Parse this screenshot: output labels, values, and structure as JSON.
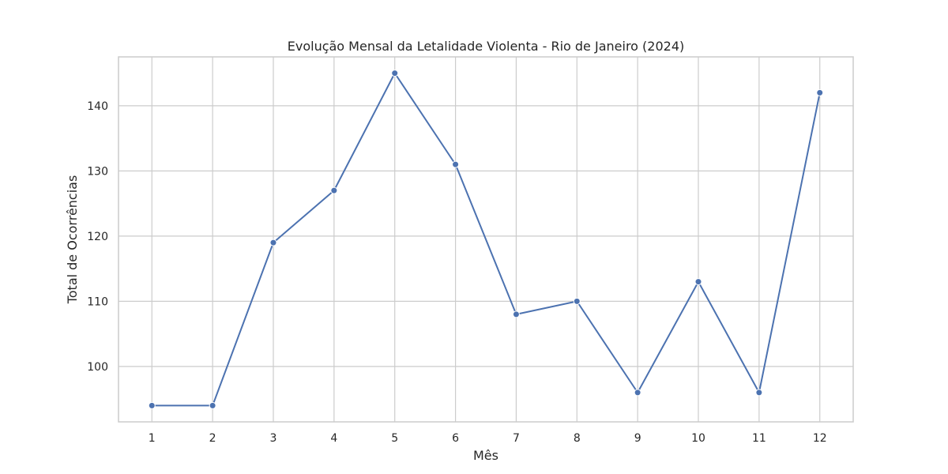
{
  "chart_data": {
    "type": "line",
    "title": "Evolução Mensal da Letalidade Violenta - Rio de Janeiro (2024)",
    "xlabel": "Mês",
    "ylabel": "Total de Ocorrências",
    "x": [
      1,
      2,
      3,
      4,
      5,
      6,
      7,
      8,
      9,
      10,
      11,
      12
    ],
    "x_tick_labels": [
      "1",
      "2",
      "3",
      "4",
      "5",
      "6",
      "7",
      "8",
      "9",
      "10",
      "11",
      "12"
    ],
    "y_ticks": [
      100,
      110,
      120,
      130,
      140
    ],
    "y_tick_labels": [
      "100",
      "110",
      "120",
      "130",
      "140"
    ],
    "series": [
      {
        "values": [
          94,
          94,
          119,
          127,
          145,
          131,
          108,
          110,
          96,
          113,
          96,
          142
        ],
        "color": "#4c72b0",
        "marker": "circle"
      }
    ],
    "xlim": [
      0.45,
      12.55
    ],
    "ylim": [
      91.5,
      147.5
    ],
    "grid": true,
    "legend": "none"
  }
}
